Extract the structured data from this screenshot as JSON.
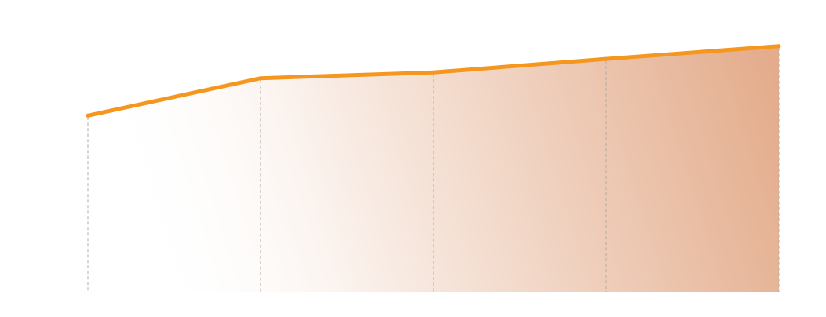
{
  "chart_data": {
    "type": "area",
    "x": [
      1,
      2,
      3,
      4,
      5
    ],
    "values": [
      60.4,
      73.2,
      75.2,
      79.8,
      84.2
    ],
    "xlim": [
      1,
      5
    ],
    "ylim": [
      0,
      100
    ],
    "grid": "vertical-dashed",
    "colors": {
      "line": "#f5961e",
      "area_strong": "#e2a886",
      "area_fade": "#ffffff",
      "grid": "#b5aaa5"
    }
  }
}
